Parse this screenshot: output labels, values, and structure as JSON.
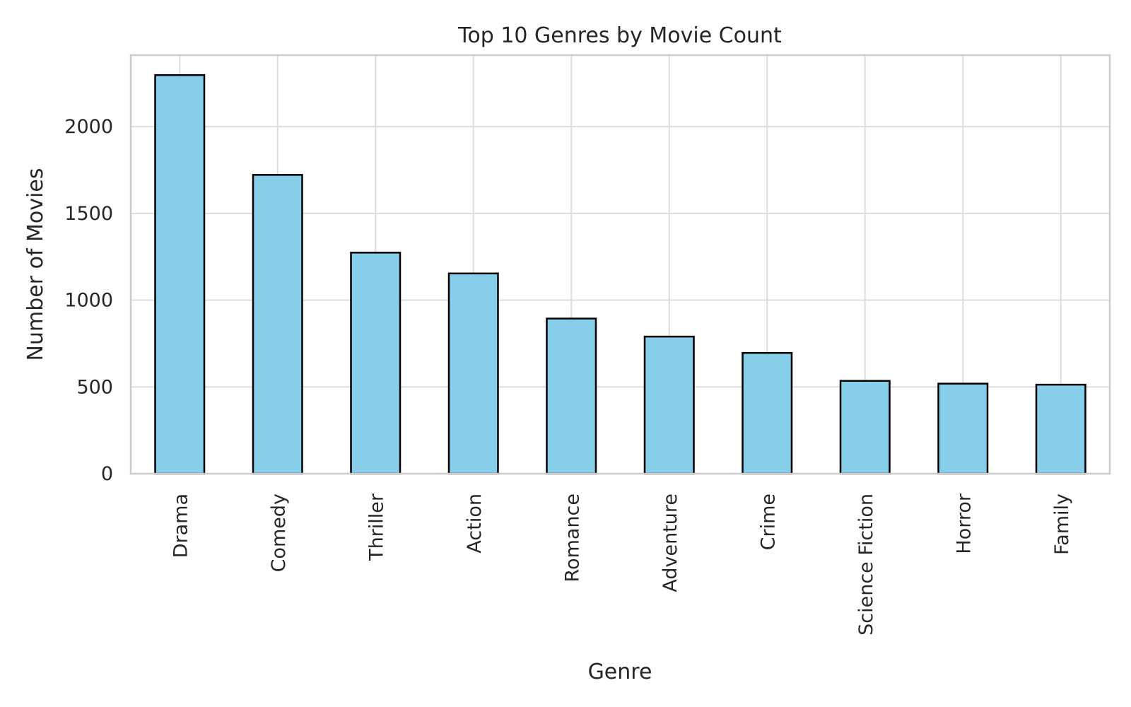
{
  "chart_data": {
    "type": "bar",
    "title": "Top 10 Genres by Movie Count",
    "xlabel": "Genre",
    "ylabel": "Number of Movies",
    "categories": [
      "Drama",
      "Comedy",
      "Thriller",
      "Action",
      "Romance",
      "Adventure",
      "Crime",
      "Science Fiction",
      "Horror",
      "Family"
    ],
    "values": [
      2297,
      1722,
      1274,
      1154,
      894,
      790,
      696,
      535,
      519,
      513
    ],
    "ylim": [
      0,
      2412
    ],
    "yticks": [
      0,
      500,
      1000,
      1500,
      2000
    ],
    "grid": true,
    "legend": "none",
    "bar_color": "#87ceeb",
    "bar_edge_color": "#000000",
    "grid_color": "#dddddd",
    "frame_color": "#cccccc",
    "text_color": "#262626"
  }
}
